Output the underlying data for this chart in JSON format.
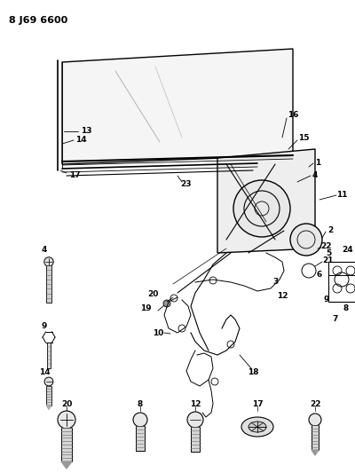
{
  "title_label": "8 J69 6600",
  "bg_color": "#ffffff",
  "fig_width": 4.0,
  "fig_height": 5.33,
  "dpi": 100
}
